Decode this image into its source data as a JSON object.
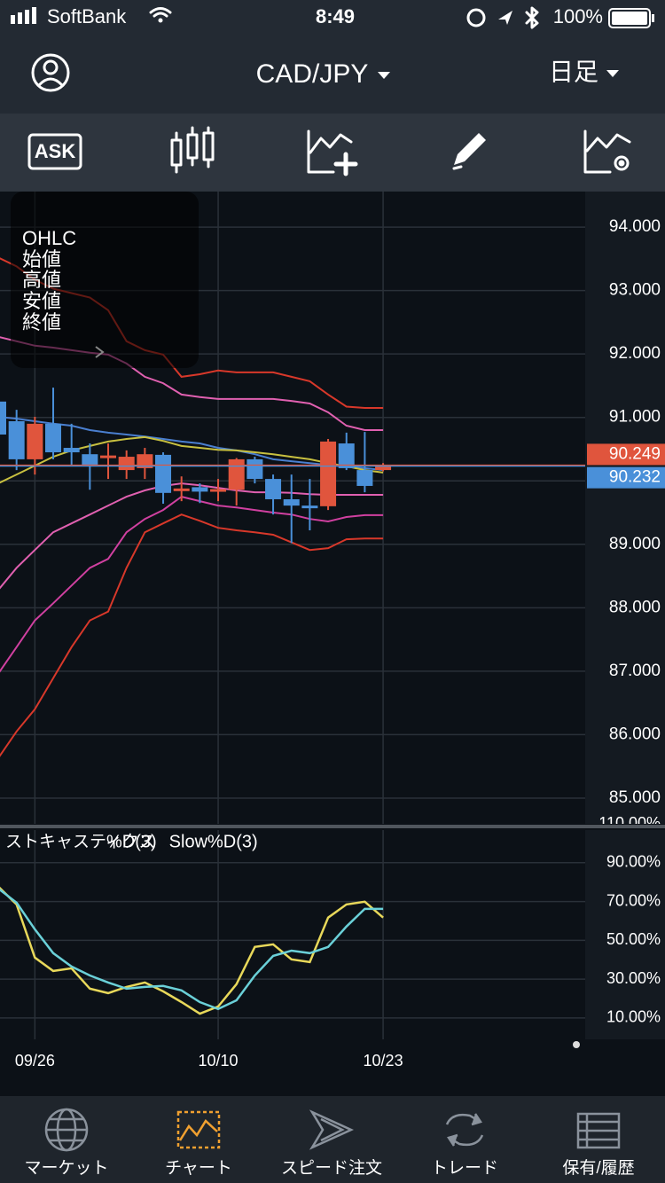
{
  "status_bar": {
    "carrier": "SoftBank",
    "time": "8:49",
    "battery": "100%"
  },
  "header": {
    "pair": "CAD/JPY",
    "timeframe": "日足"
  },
  "toolbar": {
    "ask": "ASK"
  },
  "ohlc_panel": {
    "title": "OHLC",
    "fields": [
      "始値",
      "高値",
      "安値",
      "終値"
    ]
  },
  "chart_data": [
    {
      "type": "candlestick",
      "categories": [
        null,
        null,
        "09/26",
        null,
        null,
        null,
        null,
        null,
        null,
        null,
        null,
        null,
        "10/10",
        null,
        null,
        null,
        null,
        null,
        null,
        null,
        null,
        "10/23"
      ],
      "open": [
        91.25,
        90.94,
        90.34,
        90.9,
        90.52,
        90.42,
        90.38,
        90.17,
        90.2,
        90.41,
        89.85,
        89.9,
        89.86,
        89.86,
        90.34,
        90.03,
        89.71,
        89.61,
        89.6,
        90.59,
        90.17,
        90.17
      ],
      "high": [
        91.3,
        91.12,
        91.01,
        91.47,
        90.9,
        90.59,
        90.59,
        90.48,
        90.52,
        90.45,
        90.07,
        89.96,
        90.03,
        90.36,
        90.38,
        90.1,
        90.1,
        90.03,
        90.66,
        90.76,
        90.77,
        90.28
      ],
      "low": [
        90.6,
        90.17,
        90.1,
        90.34,
        90.24,
        89.86,
        90.03,
        90.03,
        90.03,
        89.64,
        89.68,
        89.65,
        89.68,
        89.61,
        89.96,
        89.47,
        89.02,
        89.22,
        89.54,
        90.17,
        89.82,
        90.15
      ],
      "close": [
        90.73,
        90.34,
        90.9,
        90.45,
        90.45,
        90.24,
        90.4,
        90.38,
        90.42,
        89.81,
        89.88,
        89.83,
        89.87,
        90.34,
        90.03,
        89.71,
        89.61,
        89.6,
        90.62,
        90.2,
        89.92,
        90.25
      ],
      "up_color": "#e0553d",
      "down_color": "#4a90d9",
      "overlays": [
        {
          "color": "#d8382a",
          "values": [
            93.52,
            93.38,
            93.17,
            93.03,
            92.96,
            92.89,
            92.69,
            92.2,
            92.06,
            91.99,
            91.64,
            91.68,
            91.74,
            91.71,
            91.71,
            91.71,
            91.64,
            91.57,
            91.36,
            91.17,
            91.15,
            91.15
          ]
        },
        {
          "color": "#e060b0",
          "values": [
            92.27,
            92.2,
            92.13,
            92.1,
            92.06,
            92.02,
            91.99,
            91.85,
            91.64,
            91.54,
            91.36,
            91.32,
            91.29,
            91.29,
            91.29,
            91.29,
            91.26,
            91.22,
            91.08,
            90.87,
            90.8,
            90.8
          ]
        },
        {
          "color": "#4a7fd0",
          "values": [
            91.01,
            90.98,
            90.94,
            90.9,
            90.87,
            90.8,
            90.76,
            90.73,
            90.7,
            90.66,
            90.62,
            90.59,
            90.52,
            90.48,
            90.42,
            90.34,
            90.31,
            90.28,
            90.25,
            90.23,
            90.2,
            90.17
          ]
        },
        {
          "color": "#c8c040",
          "values": [
            89.96,
            90.1,
            90.24,
            90.38,
            90.48,
            90.55,
            90.62,
            90.66,
            90.69,
            90.63,
            90.55,
            90.52,
            90.49,
            90.48,
            90.45,
            90.42,
            90.38,
            90.34,
            90.28,
            90.23,
            90.17,
            90.13
          ]
        },
        {
          "color": "#e060b0",
          "values": [
            88.28,
            88.63,
            88.91,
            89.19,
            89.33,
            89.47,
            89.61,
            89.75,
            89.85,
            89.92,
            89.96,
            89.93,
            89.89,
            89.85,
            89.82,
            89.82,
            89.81,
            89.79,
            89.78,
            89.78,
            89.78,
            89.78
          ]
        },
        {
          "color": "#d040a0",
          "values": [
            86.96,
            87.38,
            87.8,
            88.07,
            88.35,
            88.63,
            88.77,
            89.19,
            89.4,
            89.54,
            89.75,
            89.68,
            89.61,
            89.58,
            89.54,
            89.5,
            89.47,
            89.4,
            89.36,
            89.43,
            89.46,
            89.46
          ]
        },
        {
          "color": "#d8382a",
          "values": [
            85.63,
            86.05,
            86.4,
            86.89,
            87.38,
            87.8,
            87.94,
            88.63,
            89.19,
            89.33,
            89.47,
            89.37,
            89.26,
            89.22,
            89.19,
            89.15,
            89.03,
            88.91,
            88.94,
            89.08,
            89.09,
            89.09
          ]
        }
      ],
      "price_lines": [
        {
          "value": 90.249,
          "color": "#e0553d"
        },
        {
          "value": 90.232,
          "color": "#4a90d9"
        }
      ],
      "ylim": [
        84.58,
        94.56
      ],
      "yticks": [
        {
          "value": 85,
          "label": "85.000"
        },
        {
          "value": 86,
          "label": "86.000"
        },
        {
          "value": 87,
          "label": "87.000"
        },
        {
          "value": 88,
          "label": "88.000"
        },
        {
          "value": 89,
          "label": "89.000"
        },
        {
          "value": 90,
          "label": "90.000"
        },
        {
          "value": 91,
          "label": "91.000"
        },
        {
          "value": 92,
          "label": "92.000"
        },
        {
          "value": 93,
          "label": "93.000"
        },
        {
          "value": 94,
          "label": "94.000"
        }
      ],
      "grid": true
    },
    {
      "type": "line",
      "title": "ストキャスティクス",
      "series": [
        {
          "name": "%D(3)",
          "color": "#e8d85a",
          "values": [
            77.7,
            68.5,
            41.1,
            34.2,
            35.6,
            25.1,
            22.8,
            26.0,
            28.3,
            23.7,
            18.2,
            12.2,
            15.9,
            27.4,
            46.6,
            47.9,
            40.2,
            38.8,
            61.7,
            68.5,
            69.9,
            61.7
          ]
        },
        {
          "name": "Slow%D(3)",
          "color": "#6ad0d8",
          "values": [
            76.7,
            69.4,
            55.7,
            43.4,
            36.5,
            31.9,
            28.3,
            25.1,
            26.0,
            26.5,
            24.2,
            18.2,
            14.6,
            19.1,
            31.9,
            42.0,
            44.7,
            43.4,
            46.6,
            57.1,
            66.2,
            66.2
          ]
        }
      ],
      "ylim": [
        -1,
        110
      ],
      "yticks": [
        {
          "value": 10,
          "label": "10.00%"
        },
        {
          "value": 30,
          "label": "30.00%"
        },
        {
          "value": 50,
          "label": "50.00%"
        },
        {
          "value": 70,
          "label": "70.00%"
        },
        {
          "value": 90,
          "label": "90.00%"
        },
        {
          "value": 110,
          "label": "110.00%"
        }
      ],
      "grid": true
    }
  ],
  "tab_bar": {
    "tabs": [
      "マーケット",
      "チャート",
      "スピード注文",
      "トレード",
      "保有/履歴"
    ],
    "active": 1
  }
}
